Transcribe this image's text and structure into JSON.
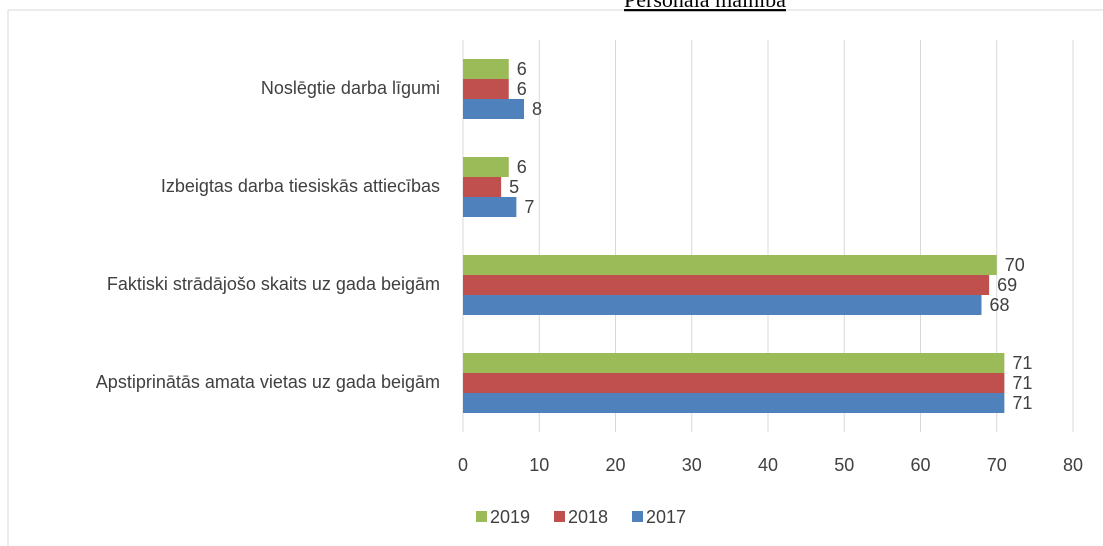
{
  "chart_data": {
    "type": "barh",
    "title": "Personāla mainība",
    "categories": [
      "Noslēgtie darba līgumi",
      "Izbeigtas darba tiesiskās attiecības",
      "Faktiski strādājošo skaits uz gada beigām",
      "Apstiprinātās amata vietas uz gada beigām"
    ],
    "series": [
      {
        "name": "2019",
        "color": "#9bbb59",
        "values": [
          6,
          6,
          70,
          71
        ]
      },
      {
        "name": "2018",
        "color": "#c0504d",
        "values": [
          6,
          5,
          69,
          71
        ]
      },
      {
        "name": "2017",
        "color": "#4f81bd",
        "values": [
          8,
          7,
          68,
          71
        ]
      }
    ],
    "xlim": [
      0,
      80
    ],
    "xticks": [
      0,
      10,
      20,
      30,
      40,
      50,
      60,
      70,
      80
    ],
    "grid": true,
    "legend": "bottom"
  }
}
